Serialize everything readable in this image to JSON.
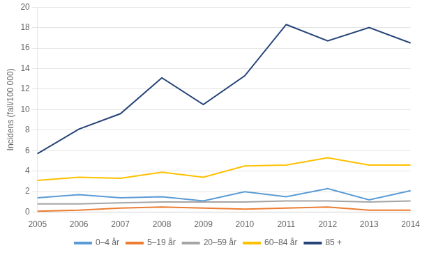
{
  "chart_data": {
    "type": "line",
    "categories": [
      2005,
      2006,
      2007,
      2008,
      2009,
      2010,
      2011,
      2012,
      2013,
      2014
    ],
    "series": [
      {
        "name": "0–4 år",
        "color": "#5B9BD5",
        "values": [
          1.4,
          1.7,
          1.4,
          1.5,
          1.1,
          2.0,
          1.5,
          2.3,
          1.2,
          2.1
        ]
      },
      {
        "name": "5–19 år",
        "color": "#ED7D31",
        "values": [
          0.1,
          0.2,
          0.4,
          0.5,
          0.4,
          0.3,
          0.4,
          0.5,
          0.2,
          0.2
        ]
      },
      {
        "name": "20–59 år",
        "color": "#A5A5A5",
        "values": [
          0.8,
          0.8,
          0.9,
          1.0,
          1.0,
          1.0,
          1.1,
          1.1,
          1.0,
          1.1
        ]
      },
      {
        "name": "60–84 år",
        "color": "#FFC000",
        "values": [
          3.1,
          3.4,
          3.3,
          3.9,
          3.4,
          4.5,
          4.6,
          5.3,
          4.6,
          4.6
        ]
      },
      {
        "name": "85 +",
        "color": "#264478",
        "values": [
          5.7,
          8.1,
          9.6,
          13.1,
          10.5,
          13.3,
          18.3,
          16.7,
          18.0,
          16.5
        ]
      }
    ],
    "ylabel": "Incidens (fall/100 000)",
    "ylim": [
      0,
      20
    ],
    "yticks": [
      0,
      2,
      4,
      6,
      8,
      10,
      12,
      14,
      16,
      18,
      20
    ],
    "grid": true,
    "legend": "bottom"
  }
}
